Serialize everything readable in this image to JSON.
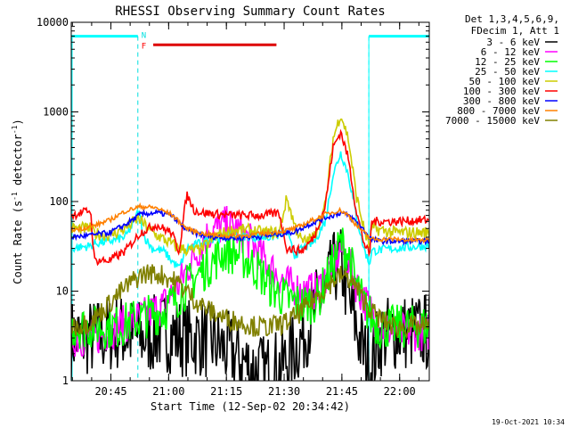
{
  "chart_data": {
    "type": "line",
    "title": "RHESSI Observing Summary Count Rates",
    "xlabel": "Start Time (12-Sep-02 20:34:42)",
    "ylabel_prefix": "Count Rate (s",
    "ylabel_sup1": "-1",
    "ylabel_mid": " detector",
    "ylabel_sup2": "-1",
    "ylabel_suffix": ")",
    "x_unit": "minutes after 20:34:42 UT",
    "xlim": [
      0,
      93
    ],
    "ylim": [
      1,
      10000
    ],
    "y_scale": "log",
    "x_ticks": [
      {
        "t": 10.3,
        "label": "20:45"
      },
      {
        "t": 25.3,
        "label": "21:00"
      },
      {
        "t": 40.3,
        "label": "21:15"
      },
      {
        "t": 55.3,
        "label": "21:30"
      },
      {
        "t": 70.3,
        "label": "21:45"
      },
      {
        "t": 85.3,
        "label": "22:00"
      }
    ],
    "y_ticks": [
      {
        "v": 1,
        "label": "1"
      },
      {
        "v": 10,
        "label": "10"
      },
      {
        "v": 100,
        "label": "100"
      },
      {
        "v": 1000,
        "label": "1000"
      },
      {
        "v": 10000,
        "label": "10000"
      }
    ],
    "legend": {
      "header": [
        "Det 1,3,4,5,6,9,",
        "FDecim 1, Att 1"
      ],
      "placement": "right"
    },
    "flags": [
      {
        "label": "N",
        "color": "#00e0e0"
      },
      {
        "label": "F",
        "color": "#ff0000"
      }
    ],
    "night_intervals": [
      [
        -1,
        17.3
      ],
      [
        77.3,
        94
      ]
    ],
    "night_level": 7000,
    "flare_interval": [
      21.3,
      53.3
    ],
    "flare_level": 5600,
    "series": [
      {
        "name": "3 - 6 keV",
        "color": "#000000",
        "x": [
          0,
          5,
          6,
          12,
          18,
          24,
          30,
          34,
          38,
          42,
          46,
          50,
          55,
          60,
          63,
          66,
          68,
          69,
          70,
          71,
          72,
          74,
          76,
          78,
          80,
          84,
          88,
          92
        ],
        "y": [
          3,
          3,
          3,
          3.5,
          3,
          3.5,
          3,
          3,
          2.5,
          2,
          1.5,
          1.2,
          1.5,
          3,
          6,
          10,
          16,
          20,
          19,
          14,
          8,
          4,
          2,
          1.5,
          3,
          3.5,
          3.5,
          3.5
        ]
      },
      {
        "name": "6 - 12 keV",
        "color": "#ff00ff",
        "x": [
          0,
          5,
          6,
          12,
          18,
          24,
          28,
          32,
          36,
          40,
          44,
          48,
          52,
          56,
          60,
          64,
          68,
          70,
          72,
          74,
          76,
          78,
          80,
          84,
          88,
          92
        ],
        "y": [
          3,
          3,
          3,
          4,
          5,
          7,
          12,
          25,
          45,
          55,
          45,
          30,
          18,
          12,
          10,
          10,
          20,
          30,
          22,
          12,
          8,
          6,
          4,
          3.5,
          3.5,
          3.5
        ]
      },
      {
        "name": "12 - 25 keV",
        "color": "#00ff00",
        "x": [
          0,
          5,
          6,
          12,
          18,
          24,
          28,
          32,
          36,
          40,
          44,
          48,
          52,
          56,
          60,
          64,
          68,
          70,
          72,
          74,
          76,
          78,
          80,
          84,
          88,
          92
        ],
        "y": [
          4,
          4,
          4,
          4,
          5,
          6,
          9,
          14,
          20,
          28,
          25,
          18,
          11,
          8,
          7,
          8,
          20,
          35,
          26,
          12,
          7,
          5,
          4,
          4,
          4,
          4
        ]
      },
      {
        "name": "25 - 50 keV",
        "color": "#00ffff",
        "x": [
          0,
          5,
          6,
          10,
          14,
          16,
          17.5,
          19,
          21,
          24,
          26,
          28,
          30,
          36,
          42,
          48,
          52,
          56,
          58,
          60,
          63,
          66,
          68,
          70,
          72,
          74,
          76,
          77.5,
          78,
          84,
          92
        ],
        "y": [
          30,
          32,
          34,
          36,
          40,
          55,
          80,
          40,
          30,
          28,
          22,
          18,
          30,
          38,
          42,
          40,
          40,
          45,
          25,
          30,
          35,
          60,
          200,
          350,
          200,
          70,
          30,
          20,
          28,
          30,
          32
        ]
      },
      {
        "name": "50 - 100 keV",
        "color": "#cccc00",
        "x": [
          0,
          5,
          6,
          10,
          14,
          17.5,
          19,
          21,
          24,
          28,
          32,
          34,
          38,
          42,
          46,
          50,
          54,
          56,
          58,
          60,
          63,
          66,
          68,
          70,
          72,
          74,
          76,
          77.5,
          78,
          84,
          92
        ],
        "y": [
          50,
          50,
          44,
          42,
          50,
          65,
          55,
          45,
          38,
          30,
          28,
          30,
          42,
          48,
          48,
          45,
          45,
          110,
          55,
          35,
          40,
          90,
          500,
          950,
          500,
          120,
          50,
          30,
          50,
          45,
          45
        ]
      },
      {
        "name": "100 - 300 keV",
        "color": "#ff0000",
        "x": [
          0,
          5,
          6,
          10,
          14,
          18,
          22,
          26,
          28,
          30,
          32,
          34,
          38,
          42,
          46,
          50,
          54,
          56,
          60,
          63,
          66,
          68,
          70,
          72,
          74,
          76,
          77.5,
          78,
          84,
          92
        ],
        "y": [
          70,
          80,
          22,
          22,
          28,
          45,
          55,
          45,
          28,
          120,
          80,
          75,
          72,
          70,
          70,
          70,
          75,
          30,
          28,
          40,
          90,
          400,
          600,
          300,
          80,
          35,
          25,
          60,
          60,
          62
        ]
      },
      {
        "name": "300 - 800 keV",
        "color": "#0000ff",
        "x": [
          0,
          5,
          10,
          14,
          18,
          22,
          26,
          28,
          30,
          34,
          38,
          42,
          46,
          50,
          54,
          58,
          62,
          66,
          70,
          72,
          74,
          76,
          78,
          80,
          84,
          88,
          92
        ],
        "y": [
          40,
          42,
          45,
          55,
          72,
          75,
          70,
          58,
          48,
          42,
          40,
          39,
          40,
          41,
          43,
          46,
          56,
          66,
          75,
          70,
          60,
          48,
          38,
          36,
          36,
          36,
          36
        ]
      },
      {
        "name": "800 - 7000 keV",
        "color": "#ff8000",
        "x": [
          0,
          5,
          10,
          14,
          18,
          22,
          26,
          28,
          30,
          34,
          38,
          42,
          46,
          50,
          54,
          58,
          62,
          66,
          70,
          72,
          74,
          76,
          78,
          80,
          84,
          88,
          92
        ],
        "y": [
          48,
          52,
          62,
          78,
          88,
          85,
          72,
          60,
          50,
          44,
          42,
          41,
          42,
          44,
          46,
          50,
          60,
          72,
          80,
          70,
          55,
          45,
          38,
          38,
          38,
          37,
          37
        ]
      },
      {
        "name": "7000 - 15000 keV",
        "color": "#808000",
        "x": [
          0,
          5,
          8,
          12,
          16,
          18,
          20,
          24,
          28,
          30,
          32,
          36,
          40,
          44,
          48,
          52,
          56,
          60,
          64,
          68,
          70,
          72,
          74,
          76,
          78,
          80,
          84,
          88,
          92
        ],
        "y": [
          4,
          4.5,
          6,
          9,
          13,
          15,
          16,
          15,
          12,
          10,
          8,
          6,
          5,
          4.5,
          4,
          4,
          4.5,
          6,
          9,
          13,
          15,
          14,
          11,
          8,
          6,
          5,
          4,
          4,
          4
        ]
      }
    ]
  },
  "timestamp": "19-Oct-2021 10:34"
}
